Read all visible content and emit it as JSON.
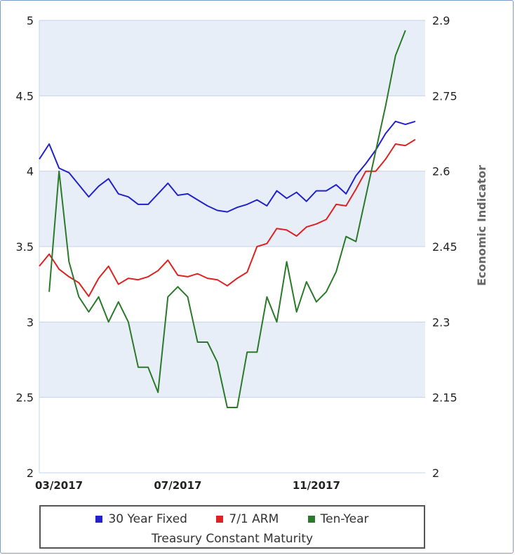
{
  "chart_data": {
    "type": "line",
    "ylabel_right": "Economic Indicator",
    "y_left_ticks": [
      "2",
      "2.5",
      "3",
      "3.5",
      "4",
      "4.5",
      "5"
    ],
    "y_left_range": [
      2,
      5
    ],
    "y_right_ticks": [
      "2",
      "2.15",
      "2.3",
      "2.45",
      "2.6",
      "2.75",
      "2.9"
    ],
    "y_right_range": [
      2,
      2.9
    ],
    "x_ticks": [
      {
        "label": "03/2017",
        "index": 0
      },
      {
        "label": "07/2017",
        "index": 14
      },
      {
        "label": "11/2017",
        "index": 28
      }
    ],
    "x_count": 40,
    "grid": true,
    "legend_position": "bottom",
    "legend_subtitle": "Treasury Constant Maturity",
    "series": [
      {
        "name": "30 Year Fixed",
        "color": "#2222cc",
        "axis": "left",
        "start_index": 0,
        "values": [
          4.08,
          4.18,
          4.02,
          3.99,
          3.91,
          3.83,
          3.9,
          3.95,
          3.85,
          3.83,
          3.78,
          3.78,
          3.85,
          3.92,
          3.84,
          3.85,
          3.81,
          3.77,
          3.74,
          3.73,
          3.76,
          3.78,
          3.81,
          3.77,
          3.87,
          3.82,
          3.86,
          3.8,
          3.87,
          3.87,
          3.91,
          3.85,
          3.97,
          4.05,
          4.14,
          4.25,
          4.33,
          4.31,
          4.33
        ]
      },
      {
        "name": "7/1 ARM",
        "color": "#dd2222",
        "axis": "left",
        "start_index": 0,
        "values": [
          3.37,
          3.45,
          3.35,
          3.3,
          3.26,
          3.17,
          3.29,
          3.37,
          3.25,
          3.29,
          3.28,
          3.3,
          3.34,
          3.41,
          3.31,
          3.3,
          3.32,
          3.29,
          3.28,
          3.24,
          3.29,
          3.33,
          3.5,
          3.52,
          3.62,
          3.61,
          3.57,
          3.63,
          3.65,
          3.68,
          3.78,
          3.77,
          3.88,
          4.0,
          4.0,
          4.08,
          4.18,
          4.17,
          4.21
        ]
      },
      {
        "name": "Ten-Year",
        "color": "#2a7a2a",
        "axis": "right",
        "start_index": 1,
        "values": [
          2.36,
          2.6,
          2.42,
          2.35,
          2.32,
          2.35,
          2.3,
          2.34,
          2.3,
          2.21,
          2.21,
          2.16,
          2.35,
          2.37,
          2.35,
          2.26,
          2.26,
          2.22,
          2.13,
          2.13,
          2.24,
          2.24,
          2.35,
          2.3,
          2.42,
          2.32,
          2.38,
          2.34,
          2.36,
          2.4,
          2.47,
          2.46,
          2.55,
          2.64,
          2.73,
          2.83,
          2.88
        ]
      }
    ]
  }
}
